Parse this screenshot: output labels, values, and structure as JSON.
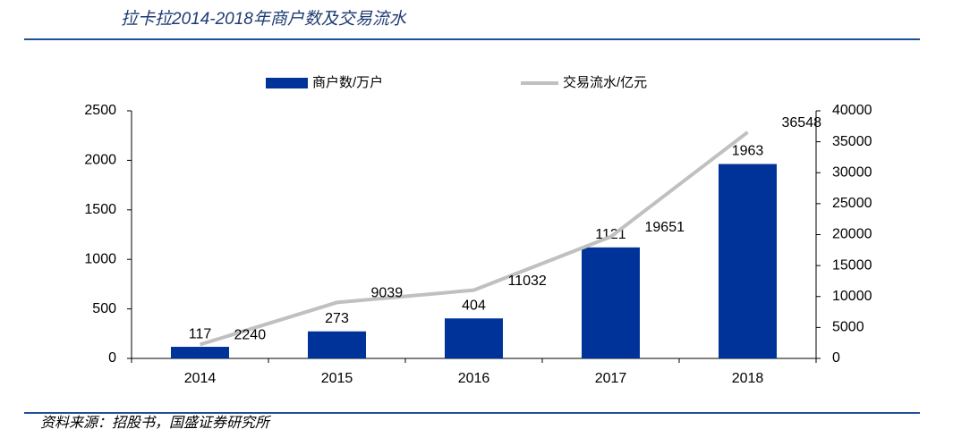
{
  "chart_data": {
    "type": "bar-line",
    "title": "拉卡拉2014-2018年商户数及交易流水",
    "source": "资料来源：招股书，国盛证券研究所",
    "categories": [
      "2014",
      "2015",
      "2016",
      "2017",
      "2018"
    ],
    "series": [
      {
        "name": "商户数/万户",
        "type": "bar",
        "color": "#003399",
        "values": [
          117,
          273,
          404,
          1121,
          1963
        ]
      },
      {
        "name": "交易流水/亿元",
        "type": "line",
        "color": "#c0c0c0",
        "axis": "y2",
        "values": [
          2240,
          9039,
          11032,
          19651,
          36548
        ]
      }
    ],
    "ylim": [
      0,
      2500
    ],
    "yticks": [
      0,
      500,
      1000,
      1500,
      2000,
      2500
    ],
    "y2lim": [
      0,
      40000
    ],
    "y2ticks": [
      0,
      5000,
      10000,
      15000,
      20000,
      25000,
      30000,
      35000,
      40000
    ],
    "legend": "top"
  }
}
